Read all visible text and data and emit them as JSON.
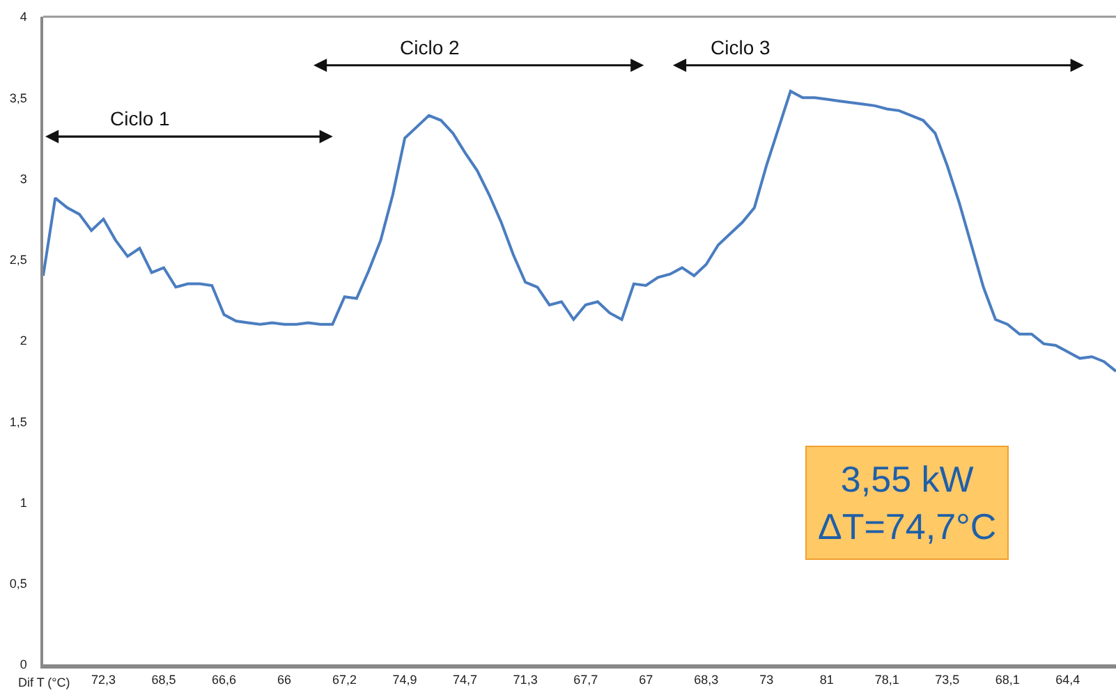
{
  "chart_data": {
    "type": "line",
    "xlabel": "Dif T (°C)",
    "categories": [
      null,
      null,
      null,
      null,
      null,
      "72,3",
      null,
      null,
      null,
      null,
      "68,5",
      null,
      null,
      null,
      null,
      "66,6",
      null,
      null,
      null,
      null,
      "66",
      null,
      null,
      null,
      null,
      "67,2",
      null,
      null,
      null,
      null,
      "74,9",
      null,
      null,
      null,
      null,
      "74,7",
      null,
      null,
      null,
      null,
      "71,3",
      null,
      null,
      null,
      null,
      "67,7",
      null,
      null,
      null,
      null,
      "67",
      null,
      null,
      null,
      null,
      "68,3",
      null,
      null,
      null,
      null,
      "73",
      null,
      null,
      null,
      null,
      "81",
      null,
      null,
      null,
      null,
      "78,1",
      null,
      null,
      null,
      null,
      "73,5",
      null,
      null,
      null,
      null,
      "68,1",
      null,
      null,
      null,
      null,
      "64,4",
      null,
      null,
      null,
      null
    ],
    "series": [
      {
        "color": "#4a7dc0",
        "values": [
          2.4,
          2.88,
          2.82,
          2.78,
          2.68,
          2.75,
          2.62,
          2.52,
          2.57,
          2.42,
          2.45,
          2.33,
          2.35,
          2.35,
          2.34,
          2.16,
          2.12,
          2.11,
          2.1,
          2.11,
          2.1,
          2.1,
          2.11,
          2.1,
          2.1,
          2.27,
          2.26,
          2.43,
          2.62,
          2.9,
          3.25,
          3.32,
          3.39,
          3.36,
          3.28,
          3.16,
          3.05,
          2.9,
          2.73,
          2.53,
          2.36,
          2.33,
          2.22,
          2.24,
          2.13,
          2.22,
          2.24,
          2.17,
          2.13,
          2.35,
          2.34,
          2.39,
          2.41,
          2.45,
          2.4,
          2.47,
          2.59,
          2.66,
          2.73,
          2.82,
          3.08,
          3.31,
          3.54,
          3.5,
          3.5,
          3.49,
          3.48,
          3.47,
          3.46,
          3.45,
          3.43,
          3.42,
          3.39,
          3.36,
          3.28,
          3.08,
          2.85,
          2.59,
          2.33,
          2.13,
          2.1,
          2.04,
          2.04,
          1.98,
          1.97,
          1.93,
          1.89,
          1.9,
          1.87,
          1.81
        ]
      }
    ],
    "ylim": [
      0,
      4
    ],
    "yticks": [
      0,
      {
        "value": 0.5,
        "label": "0,5"
      },
      1,
      {
        "value": 1.5,
        "label": "1,5"
      },
      2,
      {
        "value": 2.5,
        "label": "2,5"
      },
      3,
      {
        "value": 3.5,
        "label": "3,5"
      },
      4
    ],
    "grid": false,
    "marker": "none",
    "line_style": "solid",
    "annotations": [
      "Ciclo 1",
      "Ciclo 2",
      "Ciclo 3",
      "3,55 kW\nΔT=74,7°C"
    ]
  }
}
